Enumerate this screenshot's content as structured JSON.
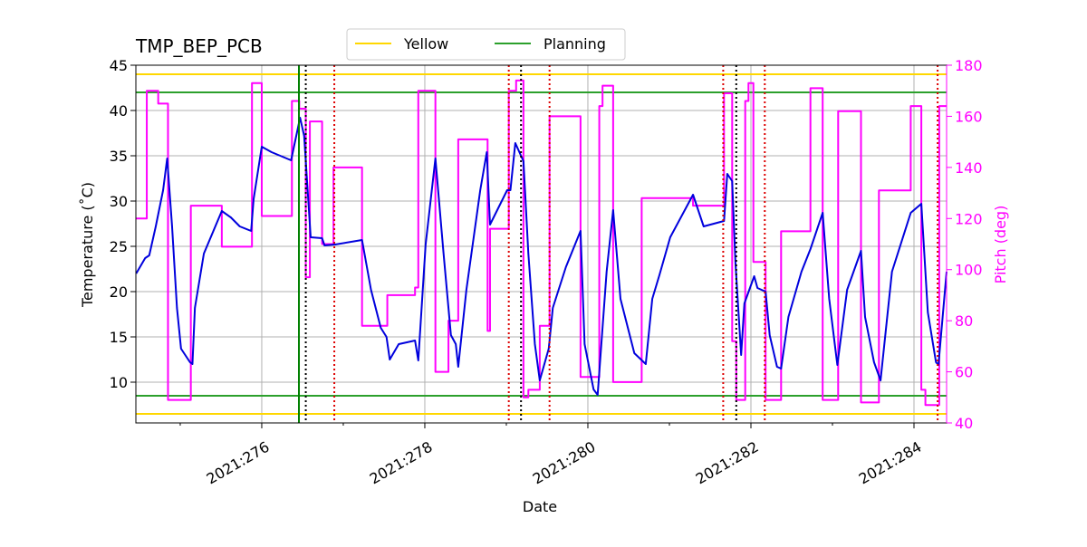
{
  "chart_data": {
    "type": "line",
    "title": "TMP_BEP_PCB",
    "xlabel": "Date",
    "ylabel": "Temperature (˚C)",
    "y2label": "Pitch (deg)",
    "xlim": [
      274.456,
      284.4
    ],
    "ylim": [
      5.5,
      45
    ],
    "y2lim": [
      40,
      180
    ],
    "xticks": [
      {
        "value": 276,
        "label": "2021:276"
      },
      {
        "value": 278,
        "label": "2021:278"
      },
      {
        "value": 280,
        "label": "2021:280"
      },
      {
        "value": 282,
        "label": "2021:282"
      },
      {
        "value": 284,
        "label": "2021:284"
      }
    ],
    "xminorticks": [
      275,
      277,
      279,
      281,
      283
    ],
    "yticks": [
      10,
      15,
      20,
      25,
      30,
      35,
      40,
      45
    ],
    "y2ticks": [
      40,
      60,
      80,
      100,
      120,
      140,
      160,
      180
    ],
    "grid": true,
    "legend": "upper center",
    "series": [
      {
        "color": "#0000dd",
        "x": [
          274.46,
          274.57,
          274.62,
          274.7,
          274.79,
          274.84,
          274.9,
          274.96,
          275.01,
          275.12,
          275.15,
          275.18,
          275.29,
          275.51,
          275.62,
          275.73,
          275.87,
          275.9,
          276.0,
          276.12,
          276.36,
          276.47,
          276.52,
          276.6,
          276.74,
          276.77,
          276.9,
          277.23,
          277.34,
          277.46,
          277.53,
          277.57,
          277.68,
          277.88,
          277.92,
          278.01,
          278.13,
          278.23,
          278.32,
          278.38,
          278.41,
          278.51,
          278.68,
          278.76,
          278.8,
          279.01,
          279.05,
          279.11,
          279.21,
          279.27,
          279.35,
          279.41,
          279.52,
          279.57,
          279.73,
          279.91,
          279.96,
          280.07,
          280.12,
          280.23,
          280.31,
          280.4,
          280.57,
          280.71,
          280.79,
          280.88,
          281.01,
          281.29,
          281.42,
          281.67,
          281.71,
          281.77,
          281.81,
          281.88,
          281.92,
          282.04,
          282.08,
          282.18,
          282.23,
          282.32,
          282.37,
          282.46,
          282.62,
          282.73,
          282.88,
          282.96,
          283.06,
          283.18,
          283.35,
          283.4,
          283.51,
          283.59,
          283.73,
          283.96,
          284.09,
          284.17,
          284.27,
          284.3,
          284.4
        ],
        "values": [
          22.0,
          23.7,
          24.0,
          27.2,
          31.2,
          34.7,
          27.2,
          18.2,
          13.7,
          12.2,
          12.0,
          18.2,
          24.2,
          28.9,
          28.2,
          27.2,
          26.7,
          30.2,
          36.0,
          35.4,
          34.5,
          39.2,
          37.2,
          26.0,
          25.9,
          25.1,
          25.2,
          25.7,
          20.2,
          16.0,
          15.0,
          12.5,
          14.2,
          14.6,
          12.4,
          25.2,
          34.7,
          24.2,
          15.2,
          14.2,
          11.7,
          20.2,
          31.2,
          35.4,
          27.4,
          31.2,
          31.2,
          36.4,
          34.4,
          24.2,
          14.2,
          10.2,
          13.7,
          18.2,
          22.7,
          26.7,
          14.2,
          9.2,
          8.6,
          22.2,
          29.0,
          19.2,
          13.2,
          12.0,
          19.2,
          21.9,
          26.0,
          30.7,
          27.2,
          27.8,
          33.0,
          32.2,
          23.2,
          13.0,
          18.7,
          21.7,
          20.4,
          20.0,
          15.2,
          11.7,
          11.5,
          17.2,
          22.2,
          24.7,
          28.7,
          19.2,
          11.9,
          20.2,
          24.5,
          17.2,
          12.2,
          10.2,
          22.2,
          28.7,
          29.7,
          17.7,
          12.2,
          11.9,
          22.2
        ]
      },
      {
        "color": "#ff00ff",
        "axis": "y2",
        "drawstyle": "steps-post",
        "x": [
          274.46,
          274.59,
          274.73,
          274.85,
          275.13,
          275.51,
          275.88,
          276.0,
          276.37,
          276.46,
          276.54,
          276.59,
          276.74,
          276.88,
          277.23,
          277.54,
          277.88,
          277.92,
          278.13,
          278.29,
          278.41,
          278.77,
          278.8,
          279.03,
          279.12,
          279.21,
          279.27,
          279.41,
          279.53,
          279.91,
          280.14,
          280.18,
          280.31,
          280.66,
          281.29,
          281.67,
          281.77,
          281.82,
          281.93,
          281.97,
          282.03,
          282.18,
          282.37,
          282.73,
          282.88,
          283.07,
          283.35,
          283.57,
          283.96,
          284.09,
          284.14,
          284.31
        ],
        "values": [
          120,
          170,
          165,
          49,
          125,
          109,
          173,
          121,
          166,
          163,
          97,
          158,
          110,
          140,
          78,
          90,
          93,
          170,
          60,
          80,
          151,
          76,
          116,
          170,
          174,
          50,
          53,
          78,
          160,
          58,
          164,
          172,
          56,
          128,
          125,
          169,
          72,
          49,
          166,
          173,
          103,
          49,
          115,
          171,
          49,
          162,
          48,
          131,
          164,
          53,
          47,
          164
        ]
      }
    ],
    "hlines": [
      {
        "name": "Yellow",
        "color": "#ffd700",
        "values": [
          44,
          6.5
        ]
      },
      {
        "name": "Planning",
        "color": "#2ca02c",
        "values": [
          42,
          8.5
        ]
      }
    ],
    "vlines": [
      {
        "color": "#008000",
        "style": "solid",
        "values": [
          276.456
        ]
      },
      {
        "color": "#000000",
        "style": "dotted",
        "values": [
          276.54,
          279.18,
          281.82
        ]
      },
      {
        "color": "#dd0000",
        "style": "dotted",
        "values": [
          276.89,
          279.03,
          279.53,
          281.66,
          282.17,
          284.29
        ]
      }
    ]
  }
}
